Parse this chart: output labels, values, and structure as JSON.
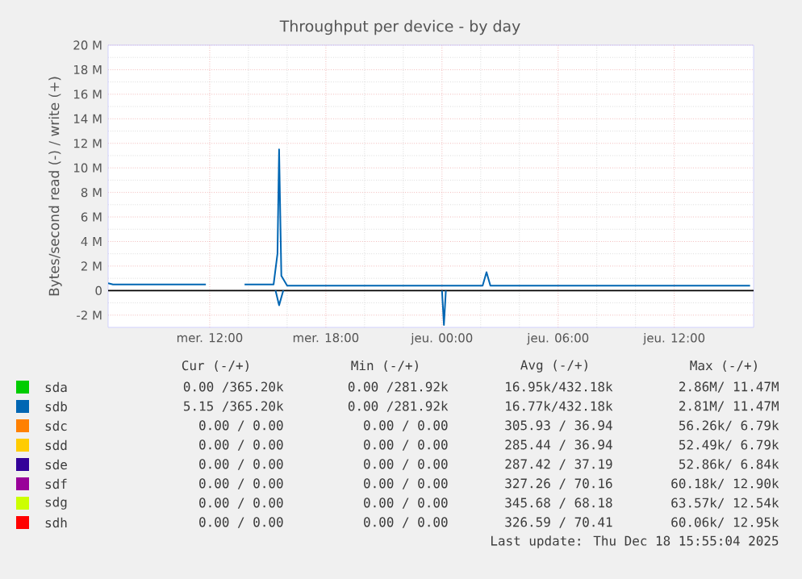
{
  "chart_data": {
    "type": "line",
    "title": "Throughput per device - by day",
    "ylabel": "Bytes/second read (-) / write (+)",
    "xlim": [
      "2025-12-17T06:45",
      "2025-12-18T16:06"
    ],
    "ylim": [
      -3,
      20
    ],
    "xticks": [
      {
        "value": "2025-12-17T12:00",
        "label": "mer. 12:00"
      },
      {
        "value": "2025-12-17T18:00",
        "label": "mer. 18:00"
      },
      {
        "value": "2025-12-18T00:00",
        "label": "jeu. 00:00"
      },
      {
        "value": "2025-12-18T06:00",
        "label": "jeu. 06:00"
      },
      {
        "value": "2025-12-18T12:00",
        "label": "jeu. 12:00"
      }
    ],
    "yticks": [
      {
        "value": -2,
        "label": "-2 M"
      },
      0,
      {
        "value": 2,
        "label": "2 M"
      },
      {
        "value": 4,
        "label": "4 M"
      },
      {
        "value": 6,
        "label": "6 M"
      },
      {
        "value": 8,
        "label": "8 M"
      },
      {
        "value": 10,
        "label": "10 M"
      },
      {
        "value": 12,
        "label": "12 M"
      },
      {
        "value": 14,
        "label": "14 M"
      },
      {
        "value": 16,
        "label": "16 M"
      },
      {
        "value": 18,
        "label": "18 M"
      },
      {
        "value": 20,
        "label": "20 M"
      }
    ],
    "grid": true,
    "legend": "bottom",
    "marker": "none",
    "line_style": "solid",
    "ref_lines": [
      {
        "axis": "y",
        "value": 0,
        "color": "#000000"
      }
    ],
    "series": [
      {
        "name": "sdc",
        "color": "#ff8000"
      },
      {
        "name": "sdd",
        "color": "#ffcc00"
      },
      {
        "name": "sde",
        "color": "#330099"
      },
      {
        "name": "sdf",
        "color": "#990099"
      },
      {
        "name": "sdg",
        "color": "#ccff00"
      },
      {
        "name": "sdh",
        "color": "#ff0000"
      },
      {
        "name": "sda",
        "color": "#00cc00"
      },
      {
        "name": "sdb",
        "color": "#0066b3",
        "x": [
          "2025-12-17T06:45",
          "2025-12-17T07:00",
          "2025-12-17T11:48",
          "2025-12-17T12:48",
          "2025-12-17T13:48",
          "2025-12-17T15:18",
          "2025-12-17T15:30",
          "2025-12-17T15:35",
          "2025-12-17T15:42",
          "2025-12-17T16:00",
          "2025-12-18T02:06",
          "2025-12-18T02:18",
          "2025-12-18T02:30",
          "2025-12-18T15:55"
        ],
        "values": [
          0.6,
          0.5,
          0.5,
          null,
          0.5,
          0.5,
          3,
          11.5,
          1.2,
          0.4,
          0.4,
          1.5,
          0.4,
          0.4
        ]
      },
      {
        "color": "#0066b3",
        "x": [
          "2025-12-17T15:24",
          "2025-12-17T15:35",
          "2025-12-17T15:48",
          "2025-12-17T18:00",
          "2025-12-18T00:00",
          "2025-12-18T00:06",
          "2025-12-18T00:12"
        ],
        "values": [
          0,
          -1.2,
          0,
          null,
          0,
          -2.8,
          0
        ]
      }
    ],
    "annotations": [
      "Cur (-/+)",
      "Min (-/+)",
      "Avg (-/+)",
      "Max (-/+)",
      "0.00 /365.20k",
      "0.00 /281.92k",
      "16.95k/432.18k",
      "2.86M/ 11.47M",
      "5.15 /365.20k",
      "0.00 /281.92k",
      "16.77k/432.18k",
      "2.81M/ 11.47M",
      "0.00 /  0.00",
      "0.00 /  0.00",
      "305.93 / 36.94",
      "56.26k/  6.79k",
      "0.00 /  0.00",
      "0.00 /  0.00",
      "285.44 / 36.94",
      "52.49k/  6.79k",
      "0.00 /  0.00",
      "0.00 /  0.00",
      "287.42 / 37.19",
      "52.86k/  6.84k",
      "0.00 /  0.00",
      "0.00 /  0.00",
      "327.26 / 70.16",
      "60.18k/ 12.90k",
      "0.00 /  0.00",
      "0.00 /  0.00",
      "345.68 / 68.18",
      "63.57k/ 12.54k",
      "0.00 /  0.00",
      "0.00 /  0.00",
      "326.59 / 70.41",
      "60.06k/ 12.95k",
      "Last update: Thu Dec 18 15:55:04 2025"
    ]
  }
}
